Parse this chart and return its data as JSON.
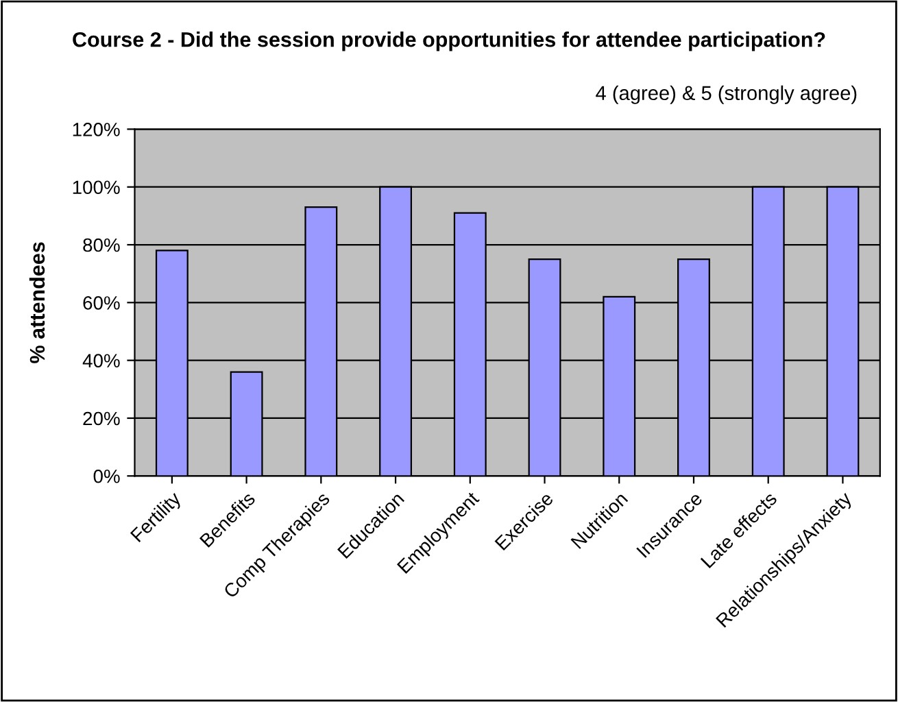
{
  "chart_data": {
    "type": "bar",
    "title": "Course 2 - Did the session provide opportunities for attendee participation?",
    "annotations": [
      "4 (agree) & 5 (strongly agree)"
    ],
    "ylabel": "% attendees",
    "categories": [
      "Fertility",
      "Benefits",
      "Comp Therapies",
      "Education",
      "Employment",
      "Exercise",
      "Nutrition",
      "Insurance",
      "Late effects",
      "Relationships/Anxiety"
    ],
    "values": [
      78,
      36,
      93,
      100,
      91,
      75,
      62,
      75,
      100,
      100
    ],
    "color": "#9999ff",
    "ylim": [
      0,
      120
    ],
    "yticks": [
      {
        "value": 0,
        "label": "0%"
      },
      {
        "value": 20,
        "label": "20%"
      },
      {
        "value": 40,
        "label": "40%"
      },
      {
        "value": 60,
        "label": "60%"
      },
      {
        "value": 80,
        "label": "80%"
      },
      {
        "value": 100,
        "label": "100%"
      },
      {
        "value": 120,
        "label": "120%"
      }
    ],
    "grid": "y",
    "legend": false
  }
}
